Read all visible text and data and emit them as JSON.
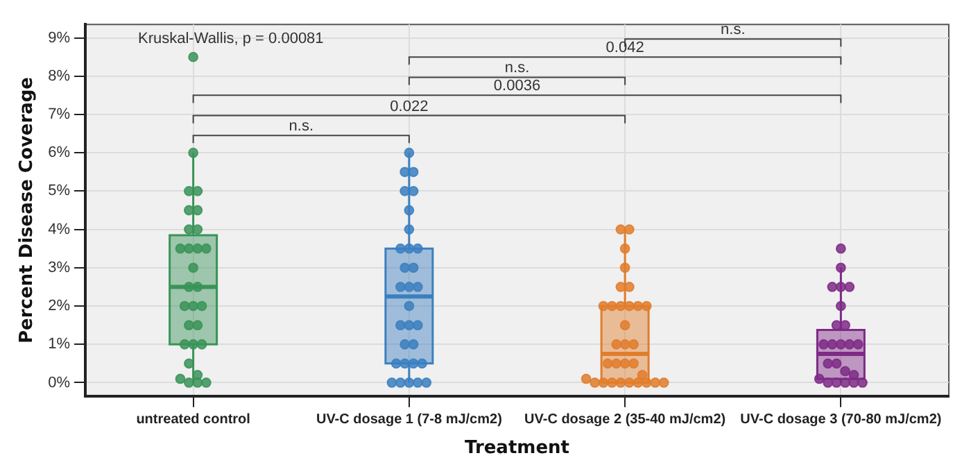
{
  "chart_data": {
    "type": "box",
    "xlabel": "Treatment",
    "ylabel": "Percent Disease Coverage",
    "categories": [
      "untreated control",
      "UV-C dosage 1 (7-8 mJ/cm2)",
      "UV-C dosage 2 (35-40 mJ/cm2)",
      "UV-C dosage 3 (70-80 mJ/cm2)"
    ],
    "colors": [
      "#3a9358",
      "#3b7fbf",
      "#e07d2c",
      "#7e2a86"
    ],
    "boxes": [
      {
        "low": 0,
        "q1": 1,
        "median": 2.5,
        "q3": 3.85,
        "high": 6
      },
      {
        "low": 0,
        "q1": 0.5,
        "median": 2.25,
        "q3": 3.5,
        "high": 6
      },
      {
        "low": 0,
        "q1": 0,
        "median": 0.75,
        "q3": 2,
        "high": 4
      },
      {
        "low": 0,
        "q1": 0.1,
        "median": 0.75,
        "q3": 1.375,
        "high": 3
      }
    ],
    "series": [
      {
        "type": "scatter",
        "color": "#3a9358",
        "x": [
          "untreated control",
          "untreated control",
          "untreated control",
          "untreated control",
          "untreated control",
          "untreated control",
          "untreated control",
          "untreated control",
          "untreated control",
          "untreated control",
          "untreated control",
          "untreated control",
          "untreated control",
          "untreated control",
          "untreated control",
          "untreated control",
          "untreated control",
          "untreated control",
          "untreated control",
          "untreated control",
          "untreated control",
          "untreated control",
          "untreated control",
          "untreated control",
          "untreated control",
          "untreated control",
          "untreated control",
          "untreated control",
          "untreated control"
        ],
        "values": [
          8.5,
          6,
          5,
          5,
          4.5,
          4.5,
          4,
          4,
          3.5,
          3.5,
          3.5,
          3.5,
          3,
          2.5,
          2.5,
          2,
          2,
          2,
          1.5,
          1.5,
          1,
          1,
          1,
          0.5,
          0.2,
          0.1,
          0,
          0,
          0
        ]
      },
      {
        "type": "scatter",
        "color": "#3b7fbf",
        "x": [
          "UV-C dosage 1 (7-8 mJ/cm2)",
          "UV-C dosage 1 (7-8 mJ/cm2)",
          "UV-C dosage 1 (7-8 mJ/cm2)",
          "UV-C dosage 1 (7-8 mJ/cm2)",
          "UV-C dosage 1 (7-8 mJ/cm2)",
          "UV-C dosage 1 (7-8 mJ/cm2)",
          "UV-C dosage 1 (7-8 mJ/cm2)",
          "UV-C dosage 1 (7-8 mJ/cm2)",
          "UV-C dosage 1 (7-8 mJ/cm2)",
          "UV-C dosage 1 (7-8 mJ/cm2)",
          "UV-C dosage 1 (7-8 mJ/cm2)",
          "UV-C dosage 1 (7-8 mJ/cm2)",
          "UV-C dosage 1 (7-8 mJ/cm2)",
          "UV-C dosage 1 (7-8 mJ/cm2)",
          "UV-C dosage 1 (7-8 mJ/cm2)",
          "UV-C dosage 1 (7-8 mJ/cm2)",
          "UV-C dosage 1 (7-8 mJ/cm2)",
          "UV-C dosage 1 (7-8 mJ/cm2)",
          "UV-C dosage 1 (7-8 mJ/cm2)",
          "UV-C dosage 1 (7-8 mJ/cm2)",
          "UV-C dosage 1 (7-8 mJ/cm2)",
          "UV-C dosage 1 (7-8 mJ/cm2)",
          "UV-C dosage 1 (7-8 mJ/cm2)",
          "UV-C dosage 1 (7-8 mJ/cm2)",
          "UV-C dosage 1 (7-8 mJ/cm2)",
          "UV-C dosage 1 (7-8 mJ/cm2)",
          "UV-C dosage 1 (7-8 mJ/cm2)",
          "UV-C dosage 1 (7-8 mJ/cm2)",
          "UV-C dosage 1 (7-8 mJ/cm2)",
          "UV-C dosage 1 (7-8 mJ/cm2)"
        ],
        "values": [
          6,
          5.5,
          5.5,
          5,
          5,
          4.5,
          4,
          3.5,
          3.5,
          3.5,
          3,
          3,
          2.5,
          2.5,
          2.5,
          2,
          1.5,
          1.5,
          1.5,
          1,
          1,
          0.5,
          0.5,
          0.5,
          0.5,
          0,
          0,
          0,
          0,
          0
        ]
      },
      {
        "type": "scatter",
        "color": "#e07d2c",
        "x": [
          "UV-C dosage 2 (35-40 mJ/cm2)",
          "UV-C dosage 2 (35-40 mJ/cm2)",
          "UV-C dosage 2 (35-40 mJ/cm2)",
          "UV-C dosage 2 (35-40 mJ/cm2)",
          "UV-C dosage 2 (35-40 mJ/cm2)",
          "UV-C dosage 2 (35-40 mJ/cm2)",
          "UV-C dosage 2 (35-40 mJ/cm2)",
          "UV-C dosage 2 (35-40 mJ/cm2)",
          "UV-C dosage 2 (35-40 mJ/cm2)",
          "UV-C dosage 2 (35-40 mJ/cm2)",
          "UV-C dosage 2 (35-40 mJ/cm2)",
          "UV-C dosage 2 (35-40 mJ/cm2)",
          "UV-C dosage 2 (35-40 mJ/cm2)",
          "UV-C dosage 2 (35-40 mJ/cm2)",
          "UV-C dosage 2 (35-40 mJ/cm2)",
          "UV-C dosage 2 (35-40 mJ/cm2)",
          "UV-C dosage 2 (35-40 mJ/cm2)",
          "UV-C dosage 2 (35-40 mJ/cm2)",
          "UV-C dosage 2 (35-40 mJ/cm2)",
          "UV-C dosage 2 (35-40 mJ/cm2)",
          "UV-C dosage 2 (35-40 mJ/cm2)",
          "UV-C dosage 2 (35-40 mJ/cm2)",
          "UV-C dosage 2 (35-40 mJ/cm2)",
          "UV-C dosage 2 (35-40 mJ/cm2)",
          "UV-C dosage 2 (35-40 mJ/cm2)",
          "UV-C dosage 2 (35-40 mJ/cm2)",
          "UV-C dosage 2 (35-40 mJ/cm2)",
          "UV-C dosage 2 (35-40 mJ/cm2)",
          "UV-C dosage 2 (35-40 mJ/cm2)",
          "UV-C dosage 2 (35-40 mJ/cm2)",
          "UV-C dosage 2 (35-40 mJ/cm2)"
        ],
        "values": [
          4,
          4,
          3.5,
          3,
          2.5,
          2.5,
          2,
          2,
          2,
          2,
          2,
          2,
          1.5,
          1,
          1,
          1,
          0.5,
          0.5,
          0.5,
          0.5,
          0.2,
          0.1,
          0,
          0,
          0,
          0,
          0,
          0,
          0,
          0,
          0
        ]
      },
      {
        "type": "scatter",
        "color": "#7e2a86",
        "x": [
          "UV-C dosage 3 (70-80 mJ/cm2)",
          "UV-C dosage 3 (70-80 mJ/cm2)",
          "UV-C dosage 3 (70-80 mJ/cm2)",
          "UV-C dosage 3 (70-80 mJ/cm2)",
          "UV-C dosage 3 (70-80 mJ/cm2)",
          "UV-C dosage 3 (70-80 mJ/cm2)",
          "UV-C dosage 3 (70-80 mJ/cm2)",
          "UV-C dosage 3 (70-80 mJ/cm2)",
          "UV-C dosage 3 (70-80 mJ/cm2)",
          "UV-C dosage 3 (70-80 mJ/cm2)",
          "UV-C dosage 3 (70-80 mJ/cm2)",
          "UV-C dosage 3 (70-80 mJ/cm2)",
          "UV-C dosage 3 (70-80 mJ/cm2)",
          "UV-C dosage 3 (70-80 mJ/cm2)",
          "UV-C dosage 3 (70-80 mJ/cm2)",
          "UV-C dosage 3 (70-80 mJ/cm2)",
          "UV-C dosage 3 (70-80 mJ/cm2)",
          "UV-C dosage 3 (70-80 mJ/cm2)",
          "UV-C dosage 3 (70-80 mJ/cm2)",
          "UV-C dosage 3 (70-80 mJ/cm2)",
          "UV-C dosage 3 (70-80 mJ/cm2)",
          "UV-C dosage 3 (70-80 mJ/cm2)",
          "UV-C dosage 3 (70-80 mJ/cm2)"
        ],
        "values": [
          3.5,
          3,
          2.5,
          2.5,
          2.5,
          2,
          1.5,
          1.5,
          1,
          1,
          1,
          1,
          1,
          0.5,
          0.5,
          0.3,
          0.2,
          0.1,
          0,
          0,
          0,
          0,
          0
        ]
      }
    ],
    "ylim": [
      -0.35,
      9.35
    ],
    "yticks": [
      {
        "value": 0,
        "label": "0%"
      },
      {
        "value": 1,
        "label": "1%"
      },
      {
        "value": 2,
        "label": "2%"
      },
      {
        "value": 3,
        "label": "3%"
      },
      {
        "value": 4,
        "label": "4%"
      },
      {
        "value": 5,
        "label": "5%"
      },
      {
        "value": 6,
        "label": "6%"
      },
      {
        "value": 7,
        "label": "7%"
      },
      {
        "value": 8,
        "label": "8%"
      },
      {
        "value": 9,
        "label": "9%"
      }
    ],
    "grid": true,
    "legend": false,
    "annotations": [
      "Kruskal-Wallis, p = 0.00081",
      "n.s.",
      "0.042",
      "n.s.",
      "0.0036",
      "0.022",
      "n.s."
    ]
  }
}
